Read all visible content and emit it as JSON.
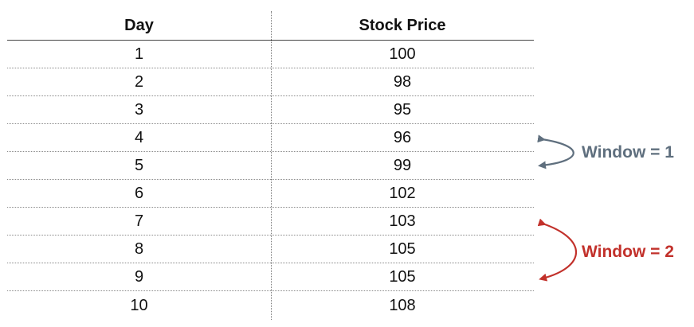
{
  "table": {
    "headers": {
      "day": "Day",
      "price": "Stock Price"
    },
    "rows": [
      {
        "day": "1",
        "price": "100"
      },
      {
        "day": "2",
        "price": "98"
      },
      {
        "day": "3",
        "price": "95"
      },
      {
        "day": "4",
        "price": "96"
      },
      {
        "day": "5",
        "price": "99"
      },
      {
        "day": "6",
        "price": "102"
      },
      {
        "day": "7",
        "price": "103"
      },
      {
        "day": "8",
        "price": "105"
      },
      {
        "day": "9",
        "price": "105"
      },
      {
        "day": "10",
        "price": "108"
      }
    ]
  },
  "annotations": {
    "window1": {
      "label": "Window = 1",
      "color": "#5f6f7e",
      "from_day": "4",
      "to_day": "5"
    },
    "window2": {
      "label": "Window = 2",
      "color": "#c2312b",
      "from_day": "7",
      "to_day": "9"
    }
  },
  "colors": {
    "text": "#111111",
    "grid": "#8a8a8a",
    "background": "#ffffff"
  }
}
